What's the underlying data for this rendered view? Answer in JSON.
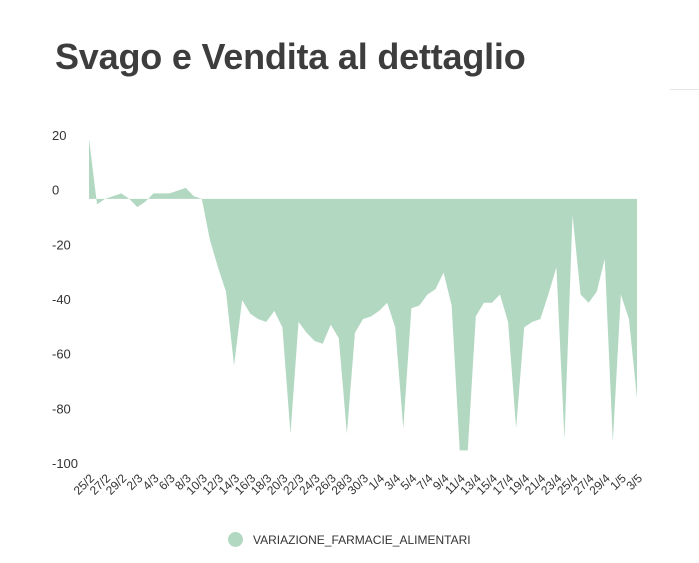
{
  "chart_data": {
    "type": "area",
    "title": "Svago e Vendita al dettaglio",
    "series": [
      {
        "name": "VARIAZIONE_FARMACIE_ALIMENTARI",
        "color": "#b2d8c2",
        "x": [
          "25/2",
          "26/2",
          "27/2",
          "28/2",
          "29/2",
          "1/3",
          "2/3",
          "3/3",
          "4/3",
          "5/3",
          "6/3",
          "7/3",
          "8/3",
          "9/3",
          "10/3",
          "11/3",
          "12/3",
          "13/3",
          "14/3",
          "15/3",
          "16/3",
          "17/3",
          "18/3",
          "19/3",
          "20/3",
          "21/3",
          "22/3",
          "23/3",
          "24/3",
          "25/3",
          "26/3",
          "27/3",
          "28/3",
          "29/3",
          "30/3",
          "31/3",
          "1/4",
          "2/4",
          "3/4",
          "4/4",
          "5/4",
          "6/4",
          "7/4",
          "8/4",
          "9/4",
          "10/4",
          "11/4",
          "12/4",
          "13/4",
          "14/4",
          "15/4",
          "16/4",
          "17/4",
          "18/4",
          "19/4",
          "20/4",
          "21/4",
          "22/4",
          "23/4",
          "24/4",
          "25/4",
          "26/4",
          "27/4",
          "28/4",
          "29/4",
          "30/4",
          "1/5",
          "2/5",
          "3/5"
        ],
        "values": [
          19,
          -5,
          -3,
          -2,
          -1,
          -3,
          -6,
          -4,
          -1,
          -1,
          -1,
          0,
          1,
          -2,
          -3,
          -18,
          -28,
          -37,
          -64,
          -40,
          -45,
          -47,
          -48,
          -44,
          -50,
          -89,
          -48,
          -52,
          -55,
          -56,
          -49,
          -54,
          -89,
          -52,
          -47,
          -46,
          -44,
          -41,
          -50,
          -87,
          -43,
          -42,
          -38,
          -36,
          -30,
          -42,
          -95,
          -95,
          -46,
          -41,
          -41,
          -38,
          -48,
          -87,
          -50,
          -48,
          -47,
          -38,
          -28,
          -91,
          -9,
          -38,
          -41,
          -37,
          -25,
          -92,
          -38,
          -47,
          -76
        ]
      }
    ],
    "xticks": [
      "25/2",
      "27/2",
      "29/2",
      "2/3",
      "4/3",
      "6/3",
      "8/3",
      "10/3",
      "12/3",
      "14/3",
      "16/3",
      "18/3",
      "20/3",
      "22/3",
      "24/3",
      "26/3",
      "28/3",
      "30/3",
      "1/4",
      "3/4",
      "5/4",
      "7/4",
      "9/4",
      "11/4",
      "13/4",
      "15/4",
      "17/4",
      "19/4",
      "21/4",
      "23/4",
      "25/4",
      "27/4",
      "29/4",
      "1/5",
      "3/5"
    ],
    "yticks": [
      "20",
      "0",
      "-20",
      "-40",
      "-60",
      "-80",
      "-100"
    ],
    "ylim": [
      -100,
      20
    ],
    "baseline": -3,
    "grid": false,
    "legend_position": "bottom"
  }
}
